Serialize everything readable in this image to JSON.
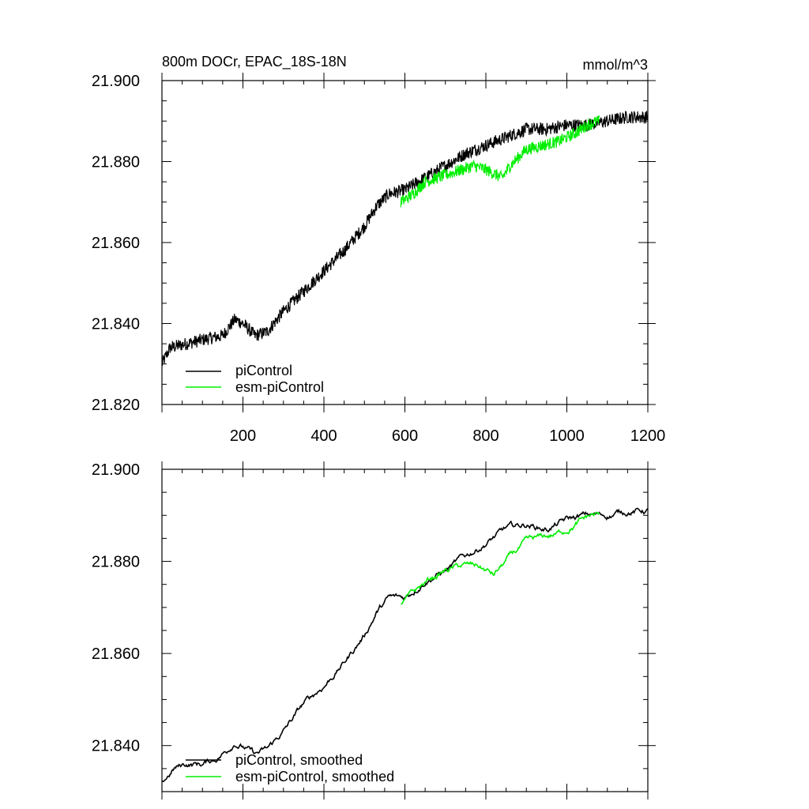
{
  "chart_data": [
    {
      "type": "line",
      "title": "800m DOCr, EPAC_18S-18N",
      "units": "mmol/m^3",
      "xlim": [
        0,
        1200
      ],
      "ylim": [
        21.82,
        21.9
      ],
      "x_ticks": [
        200,
        400,
        600,
        800,
        1000,
        1200
      ],
      "y_ticks": [
        "21.820",
        "21.840",
        "21.860",
        "21.880",
        "21.900"
      ],
      "legend_position": "bottom-left",
      "series": [
        {
          "name": "piControl",
          "color": "#000000",
          "x": [
            0,
            20,
            60,
            100,
            150,
            180,
            200,
            230,
            260,
            300,
            350,
            400,
            450,
            500,
            530,
            560,
            600,
            650,
            700,
            750,
            800,
            850,
            900,
            950,
            1000,
            1050,
            1100,
            1150,
            1200
          ],
          "y": [
            21.83,
            21.834,
            21.835,
            21.836,
            21.837,
            21.841,
            21.84,
            21.837,
            21.838,
            21.843,
            21.848,
            21.853,
            21.858,
            21.864,
            21.869,
            21.872,
            21.873,
            21.876,
            21.879,
            21.882,
            21.884,
            21.886,
            21.888,
            21.888,
            21.889,
            21.889,
            21.89,
            21.891,
            21.891
          ],
          "noise": 0.0016
        },
        {
          "name": "esm-piControl",
          "color": "#00ee00",
          "x": [
            590,
            620,
            650,
            680,
            710,
            740,
            770,
            800,
            820,
            840,
            860,
            880,
            900,
            940,
            980,
            1020,
            1050,
            1080
          ],
          "y": [
            21.87,
            21.872,
            21.875,
            21.876,
            21.877,
            21.878,
            21.879,
            21.878,
            21.877,
            21.876,
            21.879,
            21.881,
            21.883,
            21.884,
            21.885,
            21.887,
            21.889,
            21.89
          ],
          "noise": 0.0015
        }
      ]
    },
    {
      "type": "line",
      "xlim": [
        0,
        1200
      ],
      "ylim": [
        21.83,
        21.9
      ],
      "y_ticks": [
        "21.840",
        "21.860",
        "21.880",
        "21.900"
      ],
      "legend_position": "bottom-left",
      "series": [
        {
          "name": "piControl, smoothed",
          "color": "#000000",
          "x": [
            0,
            30,
            60,
            100,
            130,
            160,
            180,
            200,
            230,
            260,
            300,
            350,
            400,
            450,
            500,
            530,
            560,
            600,
            650,
            700,
            750,
            800,
            850,
            900,
            950,
            1000,
            1050,
            1100,
            1150,
            1200
          ],
          "y": [
            21.832,
            21.835,
            21.836,
            21.836,
            21.837,
            21.839,
            21.841,
            21.84,
            21.838,
            21.839,
            21.843,
            21.849,
            21.853,
            21.858,
            21.864,
            21.869,
            21.872,
            21.872,
            21.876,
            21.878,
            21.881,
            21.884,
            21.887,
            21.888,
            21.887,
            21.889,
            21.89,
            21.89,
            21.891,
            21.891
          ],
          "noise": 0.0004
        },
        {
          "name": "esm-piControl, smoothed",
          "color": "#00ee00",
          "x": [
            590,
            620,
            660,
            700,
            740,
            780,
            800,
            820,
            840,
            860,
            900,
            940,
            980,
            1020,
            1060,
            1080
          ],
          "y": [
            21.871,
            21.873,
            21.876,
            21.878,
            21.879,
            21.879,
            21.878,
            21.877,
            21.879,
            21.881,
            21.884,
            21.885,
            21.886,
            21.888,
            21.89,
            21.89
          ],
          "noise": 0.0004
        }
      ]
    }
  ]
}
